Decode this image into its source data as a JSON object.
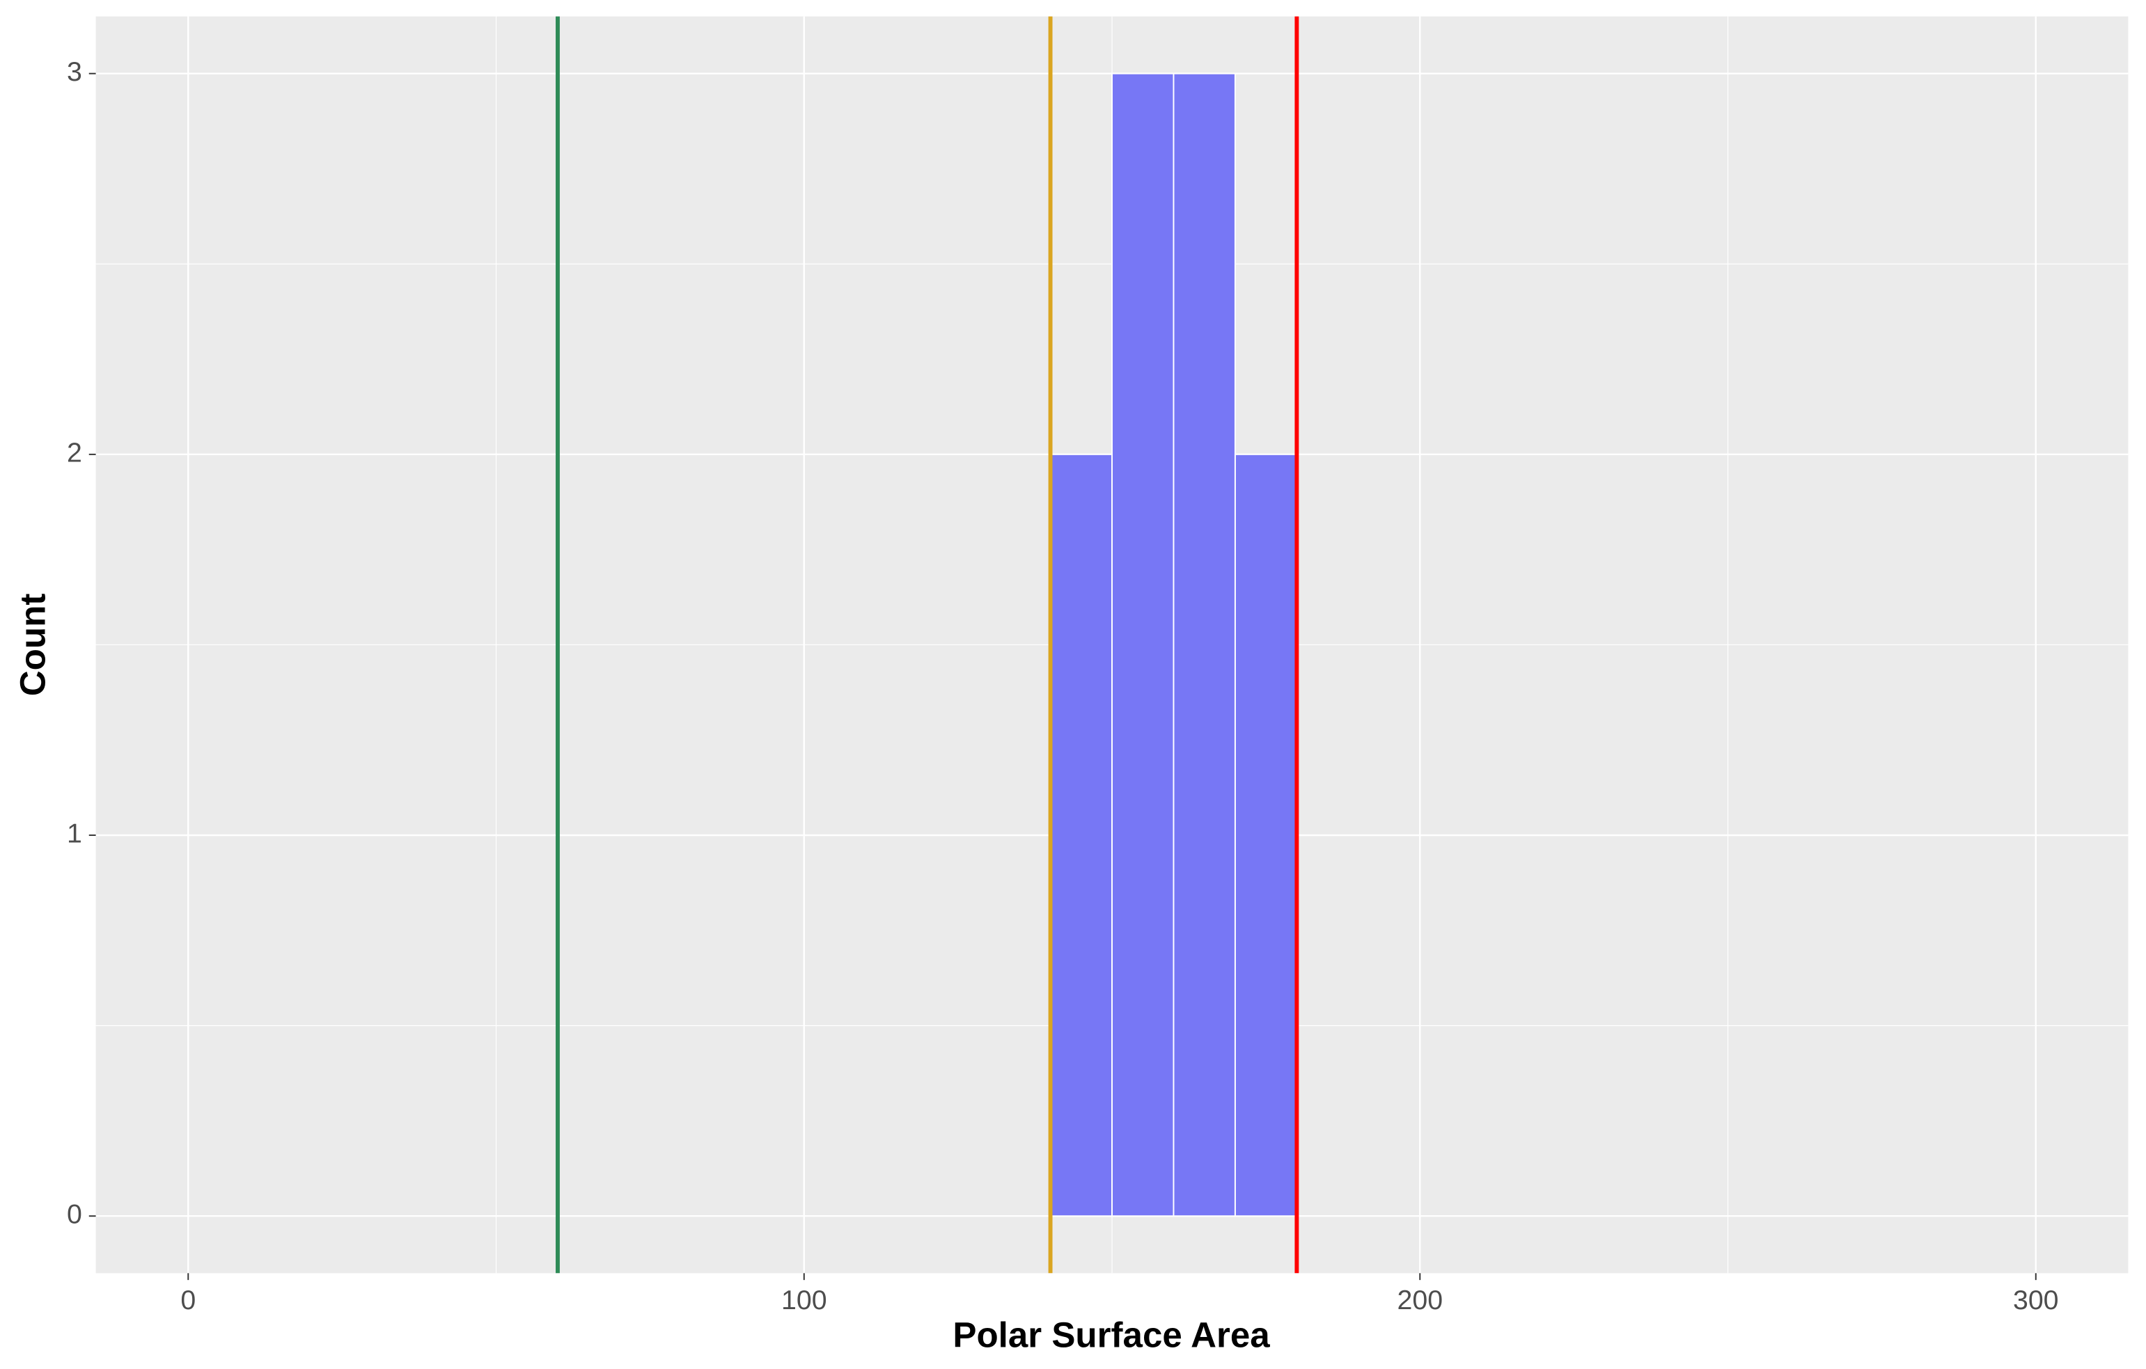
{
  "chart_data": {
    "type": "histogram",
    "x_label": "Polar Surface Area",
    "y_label": "Count",
    "bins": [
      140,
      150,
      160,
      170,
      180
    ],
    "counts": [
      2,
      3,
      3,
      2
    ],
    "color": "#7777f5",
    "xlim": [
      -15,
      315
    ],
    "ylim": [
      -0.15,
      3.15
    ],
    "xticks": [
      0,
      100,
      200,
      300
    ],
    "yticks": [
      0,
      1,
      2,
      3
    ],
    "x_minor_gridlines": [
      50,
      150,
      250
    ],
    "y_minor_gridlines": [
      0.5,
      1.5,
      2.5
    ],
    "grid": true,
    "vlines": [
      {
        "x": 60,
        "color": "#2e8b57"
      },
      {
        "x": 140,
        "color": "#daa520"
      },
      {
        "x": 180,
        "color": "#ff0000"
      }
    ]
  }
}
